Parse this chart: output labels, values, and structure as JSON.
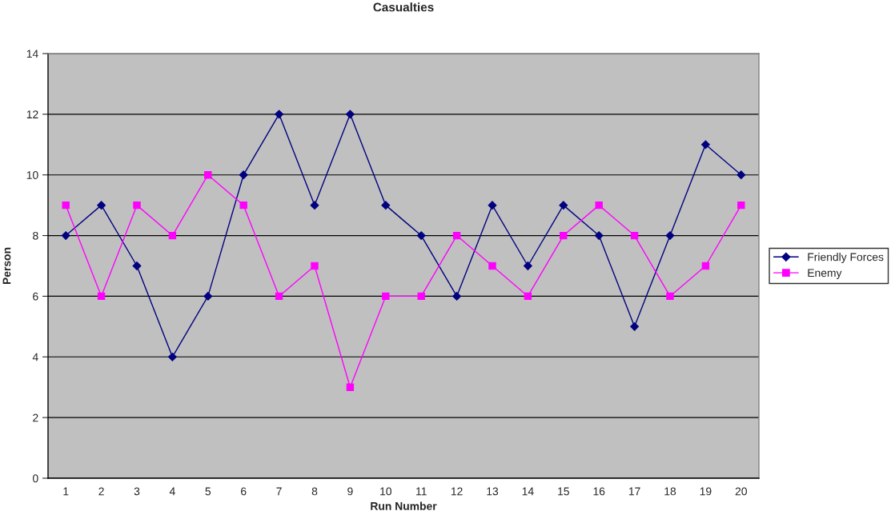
{
  "chart_data": {
    "type": "line",
    "title": "Casualties",
    "xlabel": "Run Number",
    "ylabel": "Person",
    "categories": [
      "1",
      "2",
      "3",
      "4",
      "5",
      "6",
      "7",
      "8",
      "9",
      "10",
      "11",
      "12",
      "13",
      "14",
      "15",
      "16",
      "17",
      "18",
      "19",
      "20"
    ],
    "series": [
      {
        "name": "Friendly Forces",
        "color": "#000080",
        "marker": "diamond",
        "values": [
          8,
          9,
          7,
          4,
          6,
          10,
          12,
          9,
          12,
          9,
          8,
          6,
          9,
          7,
          9,
          8,
          5,
          8,
          11,
          10
        ]
      },
      {
        "name": "Enemy",
        "color": "#ff00ff",
        "marker": "square",
        "values": [
          9,
          6,
          9,
          8,
          10,
          9,
          6,
          7,
          3,
          6,
          6,
          8,
          7,
          6,
          8,
          9,
          8,
          6,
          7,
          9
        ]
      }
    ],
    "ylim": [
      0,
      14
    ],
    "yticks": [
      0,
      2,
      4,
      6,
      8,
      10,
      12,
      14
    ],
    "grid": "y",
    "legend": "right",
    "line_style": "solid"
  }
}
